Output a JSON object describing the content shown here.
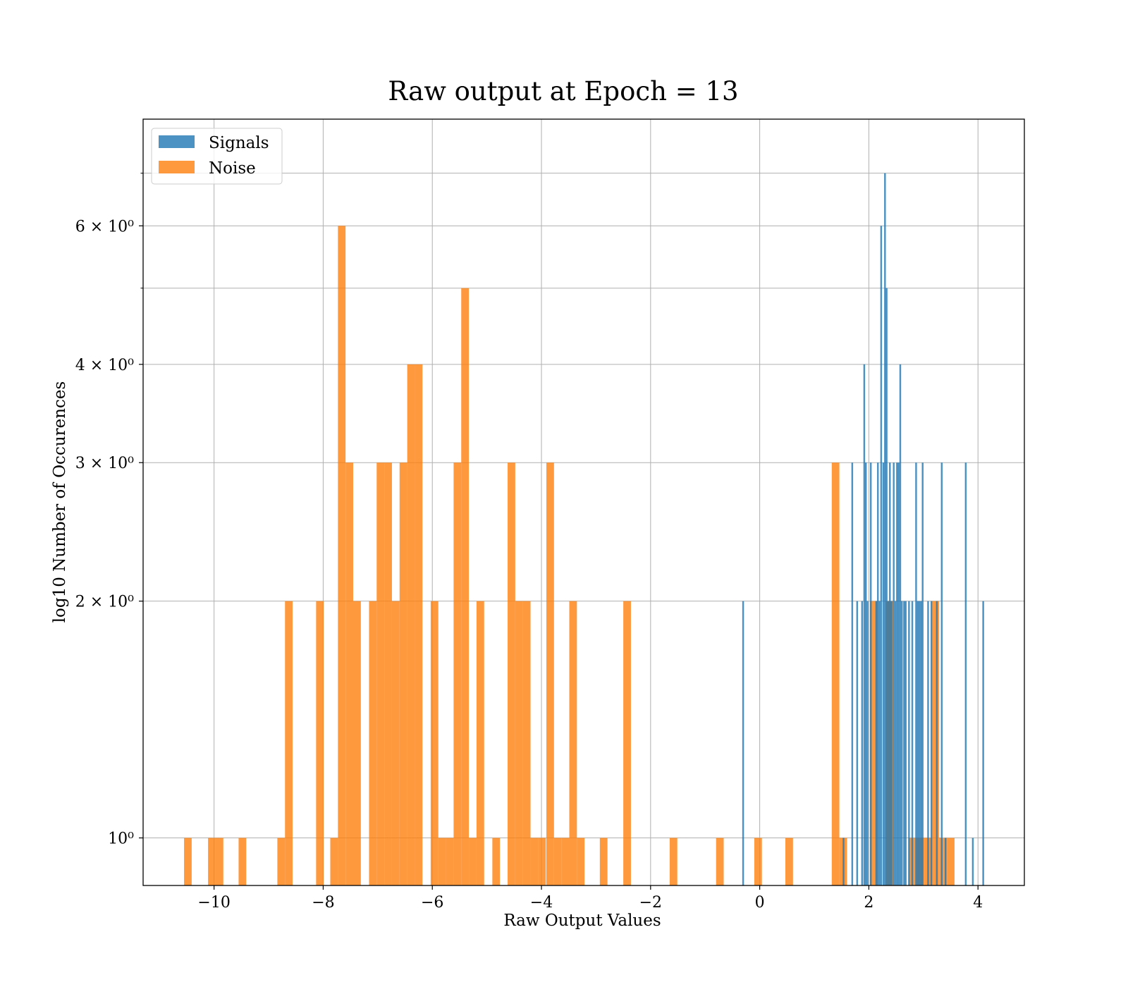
{
  "chart_data": {
    "type": "bar",
    "title": "Raw output at Epoch = 13",
    "xlabel": "Raw Output Values",
    "ylabel": "log10 Number of Occurences",
    "xlim": [
      -11.3,
      4.85
    ],
    "ylim": [
      0.87,
      8.2
    ],
    "y_scale": "log",
    "grid": true,
    "legend_position": "top-left",
    "x_ticks": [
      {
        "value": -10,
        "label": "−10"
      },
      {
        "value": -8,
        "label": "−8"
      },
      {
        "value": -6,
        "label": "−6"
      },
      {
        "value": -4,
        "label": "−4"
      },
      {
        "value": -2,
        "label": "−2"
      },
      {
        "value": 0,
        "label": "0"
      },
      {
        "value": 2,
        "label": "2"
      },
      {
        "value": 4,
        "label": "4"
      }
    ],
    "y_ticks": [
      {
        "value": 1,
        "label": "10⁰"
      },
      {
        "value": 2,
        "label": "2 × 10⁰"
      },
      {
        "value": 3,
        "label": "3 × 10⁰"
      },
      {
        "value": 4,
        "label": "4 × 10⁰"
      },
      {
        "value": 6,
        "label": "6 × 10⁰"
      }
    ],
    "y_minor_ticks": [
      5,
      7
    ],
    "series": [
      {
        "name": "Noise",
        "color": "#ff7f0e",
        "bin_width": 0.14,
        "bins": [
          {
            "x": -10.55,
            "count": 1
          },
          {
            "x": -10.11,
            "count": 1
          },
          {
            "x": -9.97,
            "count": 1
          },
          {
            "x": -9.55,
            "count": 1
          },
          {
            "x": -8.84,
            "count": 1
          },
          {
            "x": -8.7,
            "count": 2
          },
          {
            "x": -8.13,
            "count": 2
          },
          {
            "x": -7.87,
            "count": 1
          },
          {
            "x": -7.73,
            "count": 6
          },
          {
            "x": -7.59,
            "count": 3
          },
          {
            "x": -7.45,
            "count": 2
          },
          {
            "x": -7.16,
            "count": 2
          },
          {
            "x": -7.02,
            "count": 3
          },
          {
            "x": -6.88,
            "count": 3
          },
          {
            "x": -6.74,
            "count": 2
          },
          {
            "x": -6.6,
            "count": 3
          },
          {
            "x": -6.46,
            "count": 4
          },
          {
            "x": -6.32,
            "count": 4
          },
          {
            "x": -6.03,
            "count": 2
          },
          {
            "x": -5.89,
            "count": 1
          },
          {
            "x": -5.75,
            "count": 1
          },
          {
            "x": -5.61,
            "count": 3
          },
          {
            "x": -5.47,
            "count": 5
          },
          {
            "x": -5.33,
            "count": 1
          },
          {
            "x": -5.19,
            "count": 2
          },
          {
            "x": -4.9,
            "count": 1
          },
          {
            "x": -4.62,
            "count": 3
          },
          {
            "x": -4.48,
            "count": 2
          },
          {
            "x": -4.34,
            "count": 2
          },
          {
            "x": -4.2,
            "count": 1
          },
          {
            "x": -4.06,
            "count": 1
          },
          {
            "x": -3.91,
            "count": 3
          },
          {
            "x": -3.77,
            "count": 1
          },
          {
            "x": -3.63,
            "count": 1
          },
          {
            "x": -3.49,
            "count": 2
          },
          {
            "x": -3.35,
            "count": 1
          },
          {
            "x": -2.93,
            "count": 1
          },
          {
            "x": -2.5,
            "count": 2
          },
          {
            "x": -1.65,
            "count": 1
          },
          {
            "x": -0.8,
            "count": 1
          },
          {
            "x": -0.1,
            "count": 1
          },
          {
            "x": 0.47,
            "count": 1
          },
          {
            "x": 1.32,
            "count": 3
          },
          {
            "x": 1.46,
            "count": 1
          },
          {
            "x": 2.02,
            "count": 2
          },
          {
            "x": 2.31,
            "count": 2
          },
          {
            "x": 2.73,
            "count": 1
          },
          {
            "x": 2.87,
            "count": 1
          },
          {
            "x": 3.01,
            "count": 1
          },
          {
            "x": 3.15,
            "count": 2
          },
          {
            "x": 3.29,
            "count": 1
          },
          {
            "x": 3.43,
            "count": 1
          }
        ]
      },
      {
        "name": "Signals",
        "color": "#1f77b4",
        "bin_width": 0.0316,
        "bins": [
          {
            "x": -0.32,
            "count": 2
          },
          {
            "x": 1.52,
            "count": 1
          },
          {
            "x": 1.68,
            "count": 3
          },
          {
            "x": 1.77,
            "count": 2
          },
          {
            "x": 1.86,
            "count": 2
          },
          {
            "x": 1.9,
            "count": 4
          },
          {
            "x": 1.93,
            "count": 3
          },
          {
            "x": 1.96,
            "count": 2
          },
          {
            "x": 2.02,
            "count": 3
          },
          {
            "x": 2.12,
            "count": 2
          },
          {
            "x": 2.15,
            "count": 3
          },
          {
            "x": 2.18,
            "count": 2
          },
          {
            "x": 2.21,
            "count": 6
          },
          {
            "x": 2.25,
            "count": 3
          },
          {
            "x": 2.28,
            "count": 7
          },
          {
            "x": 2.31,
            "count": 5
          },
          {
            "x": 2.34,
            "count": 2
          },
          {
            "x": 2.37,
            "count": 3
          },
          {
            "x": 2.4,
            "count": 2
          },
          {
            "x": 2.44,
            "count": 3
          },
          {
            "x": 2.47,
            "count": 2
          },
          {
            "x": 2.5,
            "count": 3
          },
          {
            "x": 2.53,
            "count": 3
          },
          {
            "x": 2.56,
            "count": 4
          },
          {
            "x": 2.59,
            "count": 2
          },
          {
            "x": 2.63,
            "count": 2
          },
          {
            "x": 2.66,
            "count": 2
          },
          {
            "x": 2.72,
            "count": 2
          },
          {
            "x": 2.78,
            "count": 2
          },
          {
            "x": 2.85,
            "count": 3
          },
          {
            "x": 2.88,
            "count": 2
          },
          {
            "x": 2.91,
            "count": 2
          },
          {
            "x": 2.94,
            "count": 2
          },
          {
            "x": 2.97,
            "count": 3
          },
          {
            "x": 3.07,
            "count": 2
          },
          {
            "x": 3.13,
            "count": 2
          },
          {
            "x": 3.23,
            "count": 2
          },
          {
            "x": 3.32,
            "count": 3
          },
          {
            "x": 3.39,
            "count": 1
          },
          {
            "x": 3.76,
            "count": 3
          },
          {
            "x": 3.89,
            "count": 1
          },
          {
            "x": 4.08,
            "count": 2
          }
        ]
      }
    ]
  }
}
